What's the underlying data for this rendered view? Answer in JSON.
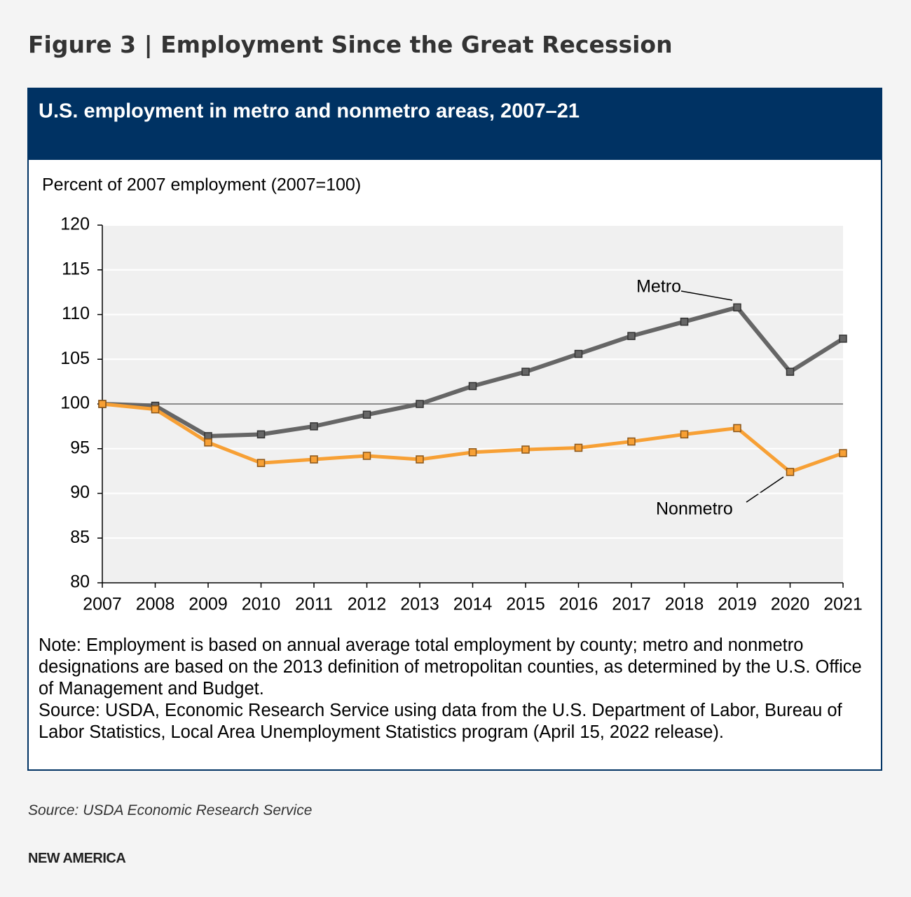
{
  "figure_title": "Figure 3 | Employment Since the Great Recession",
  "chart_data": {
    "type": "line",
    "title": "U.S. employment in metro and nonmetro areas, 2007–21",
    "y_label": "Percent of 2007 employment (2007=100)",
    "categories": [
      "2007",
      "2008",
      "2009",
      "2010",
      "2011",
      "2012",
      "2013",
      "2014",
      "2015",
      "2016",
      "2017",
      "2018",
      "2019",
      "2020",
      "2021"
    ],
    "series": [
      {
        "name": "Metro",
        "color": "#666666",
        "values": [
          100.0,
          99.8,
          96.4,
          96.6,
          97.5,
          98.8,
          100.0,
          102.0,
          103.6,
          105.6,
          107.6,
          109.2,
          110.8,
          103.6,
          107.3
        ]
      },
      {
        "name": "Nonmetro",
        "color": "#f7a035",
        "values": [
          100.0,
          99.4,
          95.7,
          93.4,
          93.8,
          94.2,
          93.8,
          94.6,
          94.9,
          95.1,
          95.8,
          96.6,
          97.3,
          92.4,
          94.5
        ]
      }
    ],
    "ylim": [
      80,
      120
    ],
    "yticks": [
      80,
      85,
      90,
      95,
      100,
      105,
      110,
      115,
      120
    ],
    "reference_line": 100,
    "grid": true,
    "note": "Note: Employment is based on annual average total employment by county; metro and nonmetro designations are based on the 2013 definition of metropolitan counties, as determined by the U.S. Office of Management and Budget.",
    "source": "Source: USDA, Economic Research Service using data from the U.S. Department of Labor, Bureau of Labor Statistics, Local Area Unemployment Statistics program (April 15, 2022 release)."
  },
  "footer_source": "Source: USDA Economic Research Service",
  "brand": "NEW AMERICA"
}
